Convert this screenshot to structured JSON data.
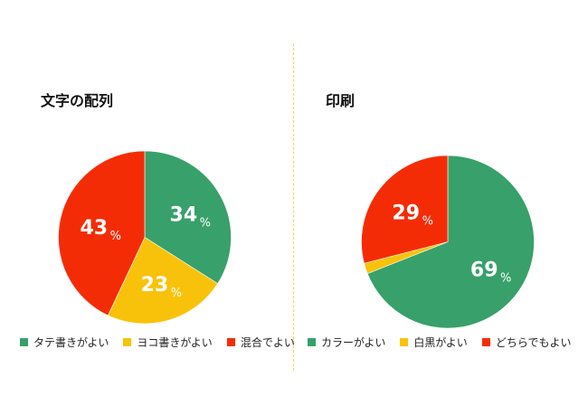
{
  "colors": {
    "green": "#38a06a",
    "yellow": "#f9c20a",
    "red": "#f42c05"
  },
  "chart_data": [
    {
      "type": "pie",
      "title": "文字の配列",
      "unit": "%",
      "series": [
        {
          "name": "タテ書きがよい",
          "value": 34,
          "label": "34",
          "color": "#38a06a"
        },
        {
          "name": "ヨコ書きがよい",
          "value": 23,
          "label": "23",
          "color": "#f9c20a"
        },
        {
          "name": "混合でよい",
          "value": 43,
          "label": "43",
          "color": "#f42c05"
        }
      ],
      "legend_placement": "bottom"
    },
    {
      "type": "pie",
      "title": "印刷",
      "unit": "%",
      "series": [
        {
          "name": "カラーがよい",
          "value": 69,
          "label": "69",
          "color": "#38a06a"
        },
        {
          "name": "白黒がよい",
          "value": 2,
          "label": "",
          "color": "#f9c20a"
        },
        {
          "name": "どちらでもよい",
          "value": 29,
          "label": "29",
          "color": "#f42c05"
        }
      ],
      "legend_placement": "bottom"
    }
  ]
}
